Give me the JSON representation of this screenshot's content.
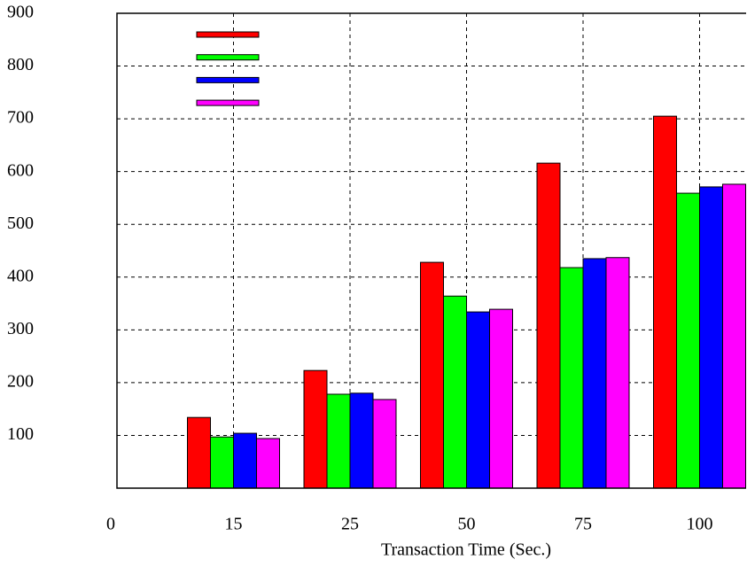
{
  "chart_data": {
    "type": "bar",
    "x_label": "Transaction Time (Sec.)",
    "categories": [
      "0",
      "15",
      "25",
      "50",
      "75",
      "100"
    ],
    "series": [
      {
        "color": "#ff0000",
        "values": [
          null,
          134,
          223,
          428,
          616,
          705
        ]
      },
      {
        "color": "#00ff00",
        "values": [
          null,
          97,
          178,
          364,
          418,
          559
        ]
      },
      {
        "color": "#0000ff",
        "values": [
          null,
          104,
          180,
          334,
          435,
          571
        ]
      },
      {
        "color": "#ff00ff",
        "values": [
          null,
          94,
          168,
          339,
          437,
          576
        ]
      }
    ],
    "ylim": [
      0,
      900
    ],
    "yticks": [
      100,
      200,
      300,
      400,
      500,
      600,
      700,
      800,
      900
    ],
    "grid": true
  }
}
